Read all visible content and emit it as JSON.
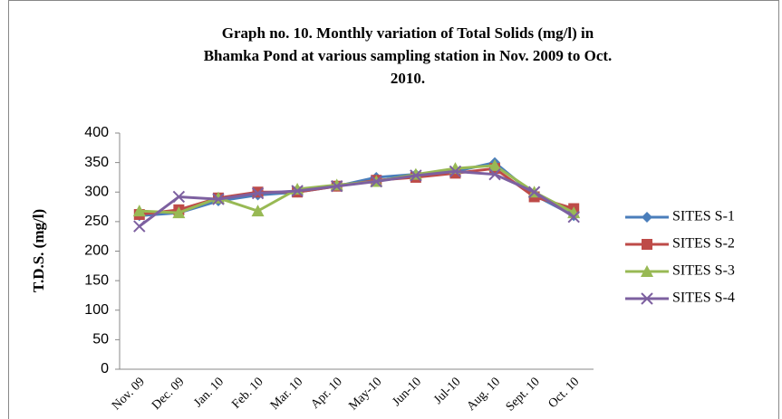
{
  "chart_data": {
    "type": "line",
    "title": [
      "Graph no. 10.  Monthly variation of Total Solids (mg/l) in",
      "Bhamka Pond at various sampling station in Nov. 2009 to Oct.",
      "2010."
    ],
    "y_label": "T.D.S. (mg/l)",
    "categories": [
      "Nov. 09",
      "Dec. 09",
      "Jan. 10",
      "Feb. 10",
      "Mar. 10",
      "Apr. 10",
      "May-10",
      "Jun-10",
      "Jul-10",
      "Aug. 10",
      "Sept. 10",
      "Oct. 10"
    ],
    "series": [
      {
        "name": "SITES S-1",
        "color": "#4a7ebb",
        "marker": "diamond",
        "values": [
          260,
          265,
          285,
          295,
          300,
          310,
          325,
          330,
          335,
          350,
          295,
          260
        ]
      },
      {
        "name": "SITES S-2",
        "color": "#be4b48",
        "marker": "square",
        "values": [
          262,
          270,
          290,
          300,
          300,
          310,
          320,
          325,
          332,
          340,
          292,
          272
        ]
      },
      {
        "name": "SITES S-3",
        "color": "#98b954",
        "marker": "triangle",
        "values": [
          268,
          265,
          290,
          268,
          305,
          312,
          318,
          330,
          340,
          345,
          300,
          265
        ]
      },
      {
        "name": "SITES S-4",
        "color": "#7d60a0",
        "marker": "x",
        "values": [
          242,
          292,
          288,
          298,
          302,
          310,
          318,
          328,
          335,
          330,
          300,
          258
        ]
      }
    ],
    "ylim": [
      0,
      400
    ],
    "yticks": [
      0,
      50,
      100,
      150,
      200,
      250,
      300,
      350,
      400
    ],
    "grid": false,
    "legend": "right"
  }
}
